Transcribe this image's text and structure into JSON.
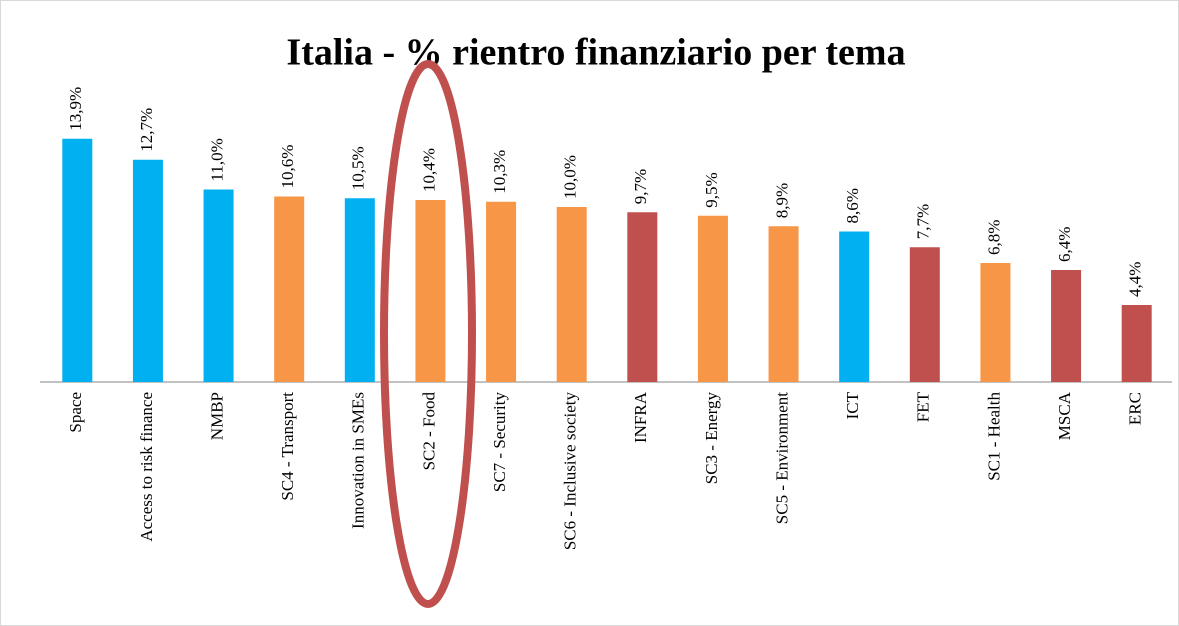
{
  "chart_data": {
    "type": "bar",
    "title": "Italia - % rientro finanziario per tema",
    "categories": [
      "Space",
      "Access to risk finance",
      "NMBP",
      "SC4 - Transport",
      "Innovation in SMEs",
      "SC2 - Food",
      "SC7 - Security",
      "SC6 - Inclusive society",
      "INFRA",
      "SC3 - Energy",
      "SC5 - Environment",
      "ICT",
      "FET",
      "SC1 - Health",
      "MSCA",
      "ERC"
    ],
    "values": [
      13.9,
      12.7,
      11.0,
      10.6,
      10.5,
      10.4,
      10.3,
      10.0,
      9.7,
      9.5,
      8.9,
      8.6,
      7.7,
      6.8,
      6.4,
      4.4
    ],
    "value_labels": [
      "13,9%",
      "12,7%",
      "11,0%",
      "10,6%",
      "10,5%",
      "10,4%",
      "10,3%",
      "10,0%",
      "9,7%",
      "9,5%",
      "8,9%",
      "8,6%",
      "7,7%",
      "6,8%",
      "6,4%",
      "4,4%"
    ],
    "colors": [
      "#00b0f0",
      "#00b0f0",
      "#00b0f0",
      "#f79646",
      "#00b0f0",
      "#f79646",
      "#f79646",
      "#f79646",
      "#c0504d",
      "#f79646",
      "#f79646",
      "#00b0f0",
      "#c0504d",
      "#f79646",
      "#c0504d",
      "#c0504d"
    ],
    "ylim": [
      0,
      20
    ]
  }
}
